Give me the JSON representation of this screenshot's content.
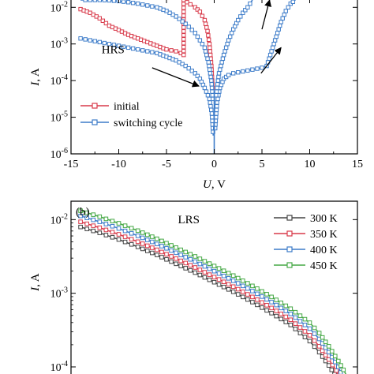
{
  "colors": {
    "axis": "#000000",
    "initial": "#d83a4a",
    "switching": "#3d7cc9",
    "t300": "#444444",
    "t350": "#d83a4a",
    "t400": "#3d7cc9",
    "t450": "#45a845",
    "arrow": "#000000"
  },
  "chart_data": [
    {
      "panel": "a",
      "type": "line",
      "title": "",
      "xlabel": "U, V",
      "ylabel": "I, A",
      "xlim": [
        -15,
        15
      ],
      "ylim_log10": [
        -6,
        -1.8
      ],
      "y_scale": "log",
      "grid": false,
      "legend_position": "bottom-left",
      "x_ticks": [
        -15,
        -10,
        -5,
        0,
        5,
        10,
        15
      ],
      "x_tick_labels": [
        "-15",
        "-10",
        "-5",
        "0",
        "5",
        "10",
        "15"
      ],
      "y_ticks_log10": [
        -6,
        -5,
        -4,
        -3,
        -2
      ],
      "y_tick_labels": [
        "10-6",
        "10-5",
        "10-4",
        "10-3",
        "10-2"
      ],
      "annotations": [
        {
          "text": "HRS",
          "x": -11.8,
          "y_log10": -3.25
        }
      ],
      "arrows": [
        {
          "from": [
            -6.5,
            -3.65
          ],
          "to": [
            -1.6,
            -4.15
          ]
        },
        {
          "from": [
            4.9,
            -3.8
          ],
          "to": [
            7.0,
            -3.1
          ]
        },
        {
          "from": [
            5.0,
            -2.6
          ],
          "to": [
            5.8,
            -1.8
          ]
        }
      ],
      "series": [
        {
          "name": "initial",
          "color_key": "initial",
          "marker": "square",
          "segments": [
            {
              "x": [
                -14,
                -13,
                -12,
                -11,
                -10,
                -9,
                -8,
                -7,
                -6,
                -5,
                -4,
                -3.5,
                -3.2
              ],
              "y_log10": [
                -2.05,
                -2.15,
                -2.3,
                -2.5,
                -2.62,
                -2.75,
                -2.85,
                -2.95,
                -3.05,
                -3.15,
                -3.2,
                -3.25,
                -3.3
              ]
            },
            {
              "x": [
                -3.2,
                -3.2,
                -2.5,
                -2,
                -1.5,
                -1,
                -0.7,
                -0.5,
                -0.3,
                -0.15
              ],
              "y_log10": [
                -3.3,
                -1.8,
                -1.92,
                -2.0,
                -2.12,
                -2.35,
                -2.65,
                -3.0,
                -3.6,
                -4.3
              ]
            }
          ]
        },
        {
          "name": "switching cycle",
          "color_key": "switching",
          "marker": "square",
          "segments": [
            {
              "x": [
                -14,
                -13,
                -12,
                -11,
                -10,
                -9,
                -8,
                -7,
                -6,
                -5,
                -4,
                -3,
                -2,
                -1.5,
                -1,
                -0.5,
                -0.25,
                -0.1
              ],
              "y_log10": [
                -2.85,
                -2.9,
                -2.95,
                -3.0,
                -3.05,
                -3.1,
                -3.15,
                -3.2,
                -3.25,
                -3.35,
                -3.45,
                -3.6,
                -3.8,
                -3.95,
                -4.2,
                -4.5,
                -4.9,
                -5.5
              ]
            },
            {
              "x": [
                -0.15,
                -0.3,
                -0.6,
                -1,
                -2,
                -3,
                -4,
                -5,
                -6,
                -7,
                -8,
                -9,
                -10,
                -11,
                -12,
                -13,
                -14
              ],
              "y_log10": [
                -4.5,
                -4.0,
                -3.5,
                -3.1,
                -2.7,
                -2.45,
                -2.25,
                -2.1,
                -2.0,
                -1.95,
                -1.9,
                -1.86,
                -1.83,
                -1.81,
                -1.8,
                -1.8,
                -1.8
              ]
            },
            {
              "x": [
                0.1,
                0.3,
                0.6,
                1,
                1.5,
                2,
                3,
                4,
                5,
                5.5
              ],
              "y_log10": [
                -5.3,
                -4.6,
                -4.2,
                -3.95,
                -3.85,
                -3.8,
                -3.75,
                -3.7,
                -3.65,
                -3.6
              ]
            },
            {
              "x": [
                5.5,
                6,
                6.5,
                7,
                7.5,
                8,
                8.5
              ],
              "y_log10": [
                -3.6,
                -3.2,
                -2.8,
                -2.4,
                -2.1,
                -1.9,
                -1.8
              ]
            },
            {
              "x": [
                0.2,
                0.5,
                1,
                1.5,
                2,
                2.5,
                3,
                3.5,
                4
              ],
              "y_log10": [
                -4.4,
                -3.8,
                -3.3,
                -2.9,
                -2.6,
                -2.35,
                -2.15,
                -2.0,
                -1.8
              ]
            }
          ]
        },
        {
          "name": "dropline",
          "color_key": "switching",
          "marker": "none",
          "segments": [
            {
              "x": [
                0,
                0
              ],
              "y_log10": [
                -6,
                -4.3
              ]
            }
          ]
        }
      ]
    },
    {
      "panel": "b",
      "panel_label": "(b)",
      "type": "line",
      "title": "",
      "xlabel": "",
      "ylabel": "I, A",
      "xlim": [
        -15,
        15
      ],
      "ylim_log10": [
        -4,
        -1.75
      ],
      "y_scale": "log",
      "grid": false,
      "legend_position": "top-right",
      "x_ticks": [],
      "y_ticks_log10": [
        -4,
        -3,
        -2
      ],
      "y_tick_labels": [
        "10-4",
        "10-3",
        "10-2"
      ],
      "annotations": [
        {
          "text": "LRS",
          "x": -3.8,
          "y_log10": -2.05
        }
      ],
      "series": [
        {
          "name": "300 K",
          "color_key": "t300",
          "marker": "square",
          "x": [
            -14,
            -12,
            -10,
            -8,
            -6,
            -4,
            -2,
            0,
            2,
            4,
            6,
            8,
            10,
            11,
            12,
            12.6,
            13
          ],
          "y_log10": [
            -2.1,
            -2.18,
            -2.27,
            -2.37,
            -2.48,
            -2.6,
            -2.72,
            -2.85,
            -2.98,
            -3.12,
            -3.27,
            -3.43,
            -3.65,
            -3.8,
            -3.98,
            -4.1,
            -4.25
          ]
        },
        {
          "name": "350 K",
          "color_key": "t350",
          "marker": "square",
          "x": [
            -14,
            -12,
            -10,
            -8,
            -6,
            -4,
            -2,
            0,
            2,
            4,
            6,
            8,
            10,
            11,
            12,
            12.8,
            13.2
          ],
          "y_log10": [
            -2.03,
            -2.11,
            -2.2,
            -2.3,
            -2.41,
            -2.53,
            -2.65,
            -2.78,
            -2.91,
            -3.05,
            -3.2,
            -3.36,
            -3.57,
            -3.72,
            -3.9,
            -4.05,
            -4.2
          ]
        },
        {
          "name": "400 K",
          "color_key": "t400",
          "marker": "square",
          "x": [
            -14,
            -12,
            -10,
            -8,
            -6,
            -4,
            -2,
            0,
            2,
            4,
            6,
            8,
            10,
            11,
            12,
            13,
            13.5
          ],
          "y_log10": [
            -1.95,
            -2.03,
            -2.12,
            -2.22,
            -2.33,
            -2.45,
            -2.57,
            -2.7,
            -2.83,
            -2.97,
            -3.12,
            -3.28,
            -3.48,
            -3.62,
            -3.8,
            -4.0,
            -4.15
          ]
        },
        {
          "name": "450 K",
          "color_key": "t450",
          "marker": "square",
          "x": [
            -14,
            -12,
            -10,
            -8,
            -6,
            -4,
            -2,
            0,
            2,
            4,
            6,
            8,
            10,
            11,
            12,
            13,
            13.8
          ],
          "y_log10": [
            -1.88,
            -1.96,
            -2.05,
            -2.15,
            -2.26,
            -2.38,
            -2.5,
            -2.63,
            -2.76,
            -2.9,
            -3.05,
            -3.21,
            -3.4,
            -3.54,
            -3.72,
            -3.92,
            -4.1
          ]
        }
      ]
    }
  ]
}
